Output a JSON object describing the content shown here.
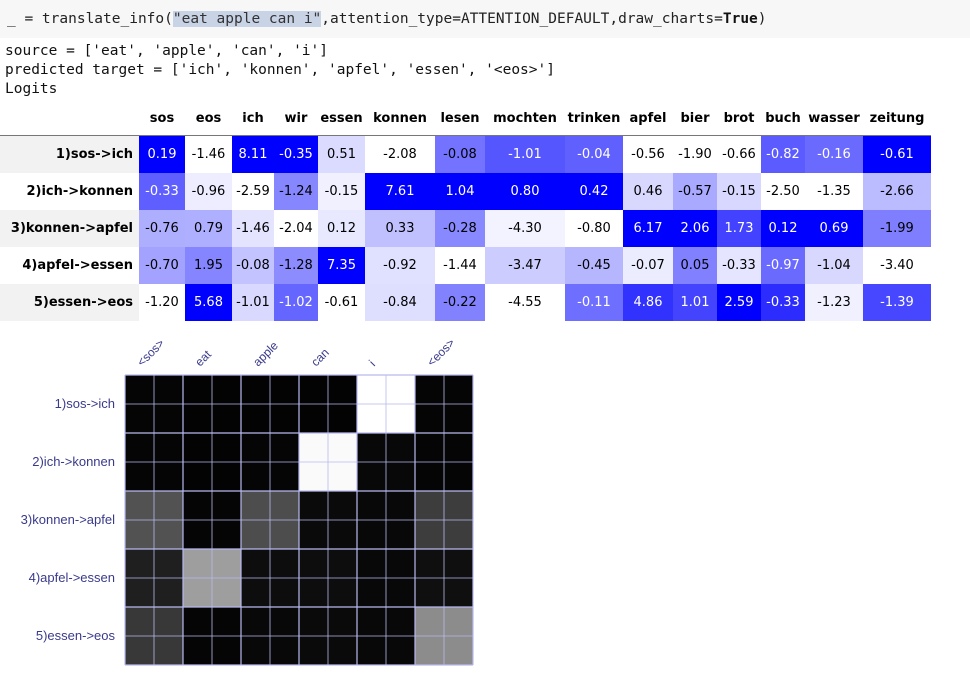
{
  "code": {
    "prefix": "_ = translate_info(",
    "arg": "\"eat apple can i\"",
    "middle": ",attention_type=ATTENTION_DEFAULT,draw_charts=",
    "kw_true": "True",
    "suffix": ")"
  },
  "output": {
    "source_line": "source = ['eat', 'apple', 'can', 'i']",
    "target_line": "predicted target = ['ich', 'konnen', 'apfel', 'essen', '<eos>']",
    "logits_label": "Logits"
  },
  "logits": {
    "columns": [
      "sos",
      "eos",
      "ich",
      "wir",
      "essen",
      "konnen",
      "lesen",
      "mochten",
      "trinken",
      "apfel",
      "bier",
      "brot",
      "buch",
      "wasser",
      "zeitung"
    ],
    "rows": [
      {
        "label": "1)sos->ich",
        "values": [
          "0.19",
          "-1.46",
          "8.11",
          "-0.35",
          "0.51",
          "-2.08",
          "-0.08",
          "-1.01",
          "-0.04",
          "-0.56",
          "-1.90",
          "-0.66",
          "-0.82",
          "-0.16",
          "-0.61"
        ]
      },
      {
        "label": "2)ich->konnen",
        "values": [
          "-0.33",
          "-0.96",
          "-2.59",
          "-1.24",
          "-0.15",
          "7.61",
          "1.04",
          "0.80",
          "0.42",
          "0.46",
          "-0.57",
          "-0.15",
          "-2.50",
          "-1.35",
          "-2.66"
        ]
      },
      {
        "label": "3)konnen->apfel",
        "values": [
          "-0.76",
          "0.79",
          "-1.46",
          "-2.04",
          "0.12",
          "0.33",
          "-0.28",
          "-4.30",
          "-0.80",
          "6.17",
          "2.06",
          "1.73",
          "0.12",
          "0.69",
          "-1.99"
        ]
      },
      {
        "label": "4)apfel->essen",
        "values": [
          "-0.70",
          "1.95",
          "-0.08",
          "-1.28",
          "7.35",
          "-0.92",
          "-1.44",
          "-3.47",
          "-0.45",
          "-0.07",
          "0.05",
          "-0.33",
          "-0.97",
          "-1.04",
          "-3.40"
        ]
      },
      {
        "label": "5)essen->eos",
        "values": [
          "-1.20",
          "5.68",
          "-1.01",
          "-1.02",
          "-0.61",
          "-0.84",
          "-0.22",
          "-4.55",
          "-0.11",
          "4.86",
          "1.01",
          "2.59",
          "-0.33",
          "-1.23",
          "-1.39"
        ]
      }
    ]
  },
  "attention": {
    "x_labels": [
      "<sos>",
      "eat",
      "apple",
      "can",
      "i",
      "<eos>"
    ],
    "y_labels": [
      "1)sos->ich",
      "2)ich->konnen",
      "3)konnen->apfel",
      "4)apfel->essen",
      "5)essen->eos"
    ],
    "weights": [
      [
        0.02,
        0.01,
        0.01,
        0.01,
        1.0,
        0.02
      ],
      [
        0.02,
        0.01,
        0.02,
        0.98,
        0.03,
        0.02
      ],
      [
        0.32,
        0.02,
        0.3,
        0.04,
        0.03,
        0.24
      ],
      [
        0.12,
        0.62,
        0.05,
        0.05,
        0.03,
        0.06
      ],
      [
        0.22,
        0.02,
        0.03,
        0.04,
        0.03,
        0.55
      ]
    ],
    "colors": {
      "grid_line": "#b9b9ee",
      "cell_low": "#000000",
      "cell_high": "#ffffff",
      "label": "#3a3a8c"
    }
  }
}
